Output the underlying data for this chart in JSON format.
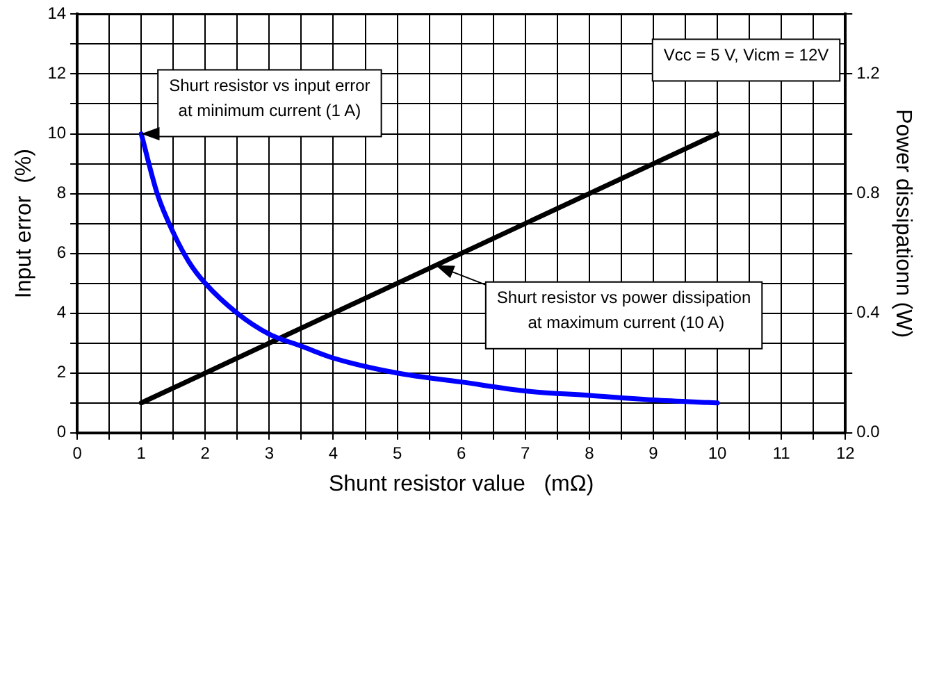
{
  "chart_data": {
    "type": "line",
    "xlabel": "Shunt resistor value   (mΩ)",
    "ylabel": "Input error  (%)",
    "y2label": "Power dissipationn (W)",
    "xlim": [
      0,
      12
    ],
    "xticks": [
      0,
      {
        "value": 0.5,
        "label": null
      },
      1,
      {
        "value": 1.5,
        "label": null
      },
      2,
      {
        "value": 2.5,
        "label": null
      },
      3,
      {
        "value": 3.5,
        "label": null
      },
      4,
      {
        "value": 4.5,
        "label": null
      },
      5,
      {
        "value": 5.5,
        "label": null
      },
      6,
      {
        "value": 6.5,
        "label": null
      },
      7,
      {
        "value": 7.5,
        "label": null
      },
      8,
      {
        "value": 8.5,
        "label": null
      },
      9,
      {
        "value": 9.5,
        "label": null
      },
      10,
      {
        "value": 10.5,
        "label": null
      },
      11,
      {
        "value": 11.5,
        "label": null
      },
      12
    ],
    "ylim": [
      0,
      14
    ],
    "yticks": [
      0,
      {
        "value": 1,
        "label": null
      },
      2,
      {
        "value": 3,
        "label": null
      },
      4,
      {
        "value": 5,
        "label": null
      },
      6,
      {
        "value": 7,
        "label": null
      },
      8,
      {
        "value": 9,
        "label": null
      },
      10,
      {
        "value": 11,
        "label": null
      },
      12,
      {
        "value": 13,
        "label": null
      },
      14
    ],
    "y2lim": [
      0,
      1.4
    ],
    "y2ticks": [
      {
        "value": 0,
        "label": "0.0"
      },
      {
        "value": 0.2,
        "label": null
      },
      0.4,
      {
        "value": 0.6,
        "label": null
      },
      0.8,
      {
        "value": 1,
        "label": null
      },
      1.2,
      {
        "value": 1.4,
        "label": null
      }
    ],
    "grid": true,
    "legend": false,
    "marker": "none",
    "line_style": "solid",
    "series": [
      {
        "color": "#0000ff",
        "x": [
          1,
          1.25,
          1.5,
          1.75,
          2,
          2.5,
          3,
          3.5,
          4,
          5,
          6,
          7,
          8,
          9,
          10
        ],
        "values": [
          10,
          8,
          6.7,
          5.7,
          5,
          4,
          3.3,
          2.9,
          2.5,
          2,
          1.7,
          1.4,
          1.25,
          1.1,
          1
        ]
      },
      {
        "color": "#000000",
        "axis": "y2",
        "x": [
          1,
          10
        ],
        "values": [
          0.1,
          1.0
        ]
      }
    ],
    "annotations": [
      {
        "text": "Shurt resistor vs input error\nat minimum current (1 A)",
        "x": 1,
        "y": 10
      },
      {
        "text": "Shurt resistor vs power dissipation\n at maximum current (10 A)",
        "x": 5.6,
        "y": 5.6
      },
      "Vcc = 5 V, Vicm = 12V"
    ]
  }
}
